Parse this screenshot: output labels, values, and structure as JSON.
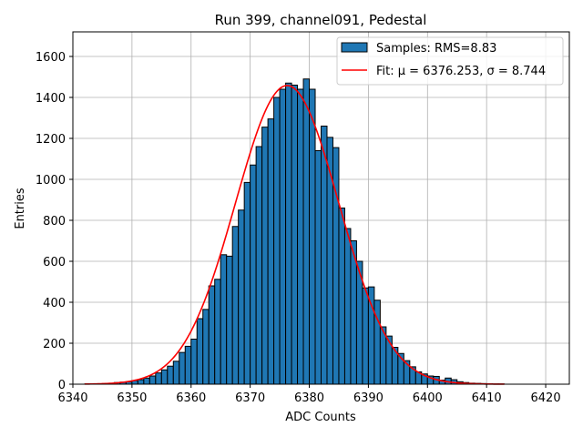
{
  "chart_data": {
    "type": "bar",
    "title": "Run 399, channel091, Pedestal",
    "xlabel": "ADC Counts",
    "ylabel": "Entries",
    "xlim": [
      6340.0,
      6424.0
    ],
    "ylim": [
      0,
      1720
    ],
    "xticks": [
      6340,
      6350,
      6360,
      6370,
      6380,
      6390,
      6400,
      6410,
      6420
    ],
    "yticks": [
      0,
      200,
      400,
      600,
      800,
      1000,
      1200,
      1400,
      1600
    ],
    "grid": true,
    "legend_position": "top-right",
    "bin_width": 1,
    "series": [
      {
        "name": "Samples: RMS=8.83",
        "kind": "histogram",
        "color": "#1f77b4",
        "edgecolor": "#000000",
        "bin_start": [
          6342,
          6343,
          6344,
          6345,
          6346,
          6347,
          6348,
          6349,
          6350,
          6351,
          6352,
          6353,
          6354,
          6355,
          6356,
          6357,
          6358,
          6359,
          6360,
          6361,
          6362,
          6363,
          6364,
          6365,
          6366,
          6367,
          6368,
          6369,
          6370,
          6371,
          6372,
          6373,
          6374,
          6375,
          6376,
          6377,
          6378,
          6379,
          6380,
          6381,
          6382,
          6383,
          6384,
          6385,
          6386,
          6387,
          6388,
          6389,
          6390,
          6391,
          6392,
          6393,
          6394,
          6395,
          6396,
          6397,
          6398,
          6399,
          6400,
          6401,
          6402,
          6403,
          6404,
          6405,
          6406,
          6407,
          6408,
          6409,
          6410,
          6411,
          6412
        ],
        "values": [
          1,
          1,
          2,
          3,
          4,
          8,
          10,
          12,
          18,
          22,
          30,
          40,
          55,
          70,
          88,
          112,
          155,
          185,
          220,
          320,
          365,
          480,
          512,
          632,
          625,
          770,
          850,
          985,
          1070,
          1160,
          1255,
          1295,
          1400,
          1440,
          1470,
          1460,
          1440,
          1490,
          1440,
          1140,
          1260,
          1205,
          1155,
          860,
          760,
          700,
          600,
          470,
          475,
          410,
          280,
          235,
          180,
          150,
          115,
          85,
          60,
          50,
          40,
          38,
          20,
          30,
          22,
          12,
          8,
          5,
          4,
          3,
          2,
          1,
          1
        ]
      },
      {
        "name": "Fit: μ = 6376.253, σ = 8.744",
        "kind": "line",
        "color": "#ff0000",
        "mu": 6376.253,
        "sigma": 8.744,
        "amplitude": 1458,
        "x_range": [
          6342,
          6413
        ]
      }
    ]
  }
}
